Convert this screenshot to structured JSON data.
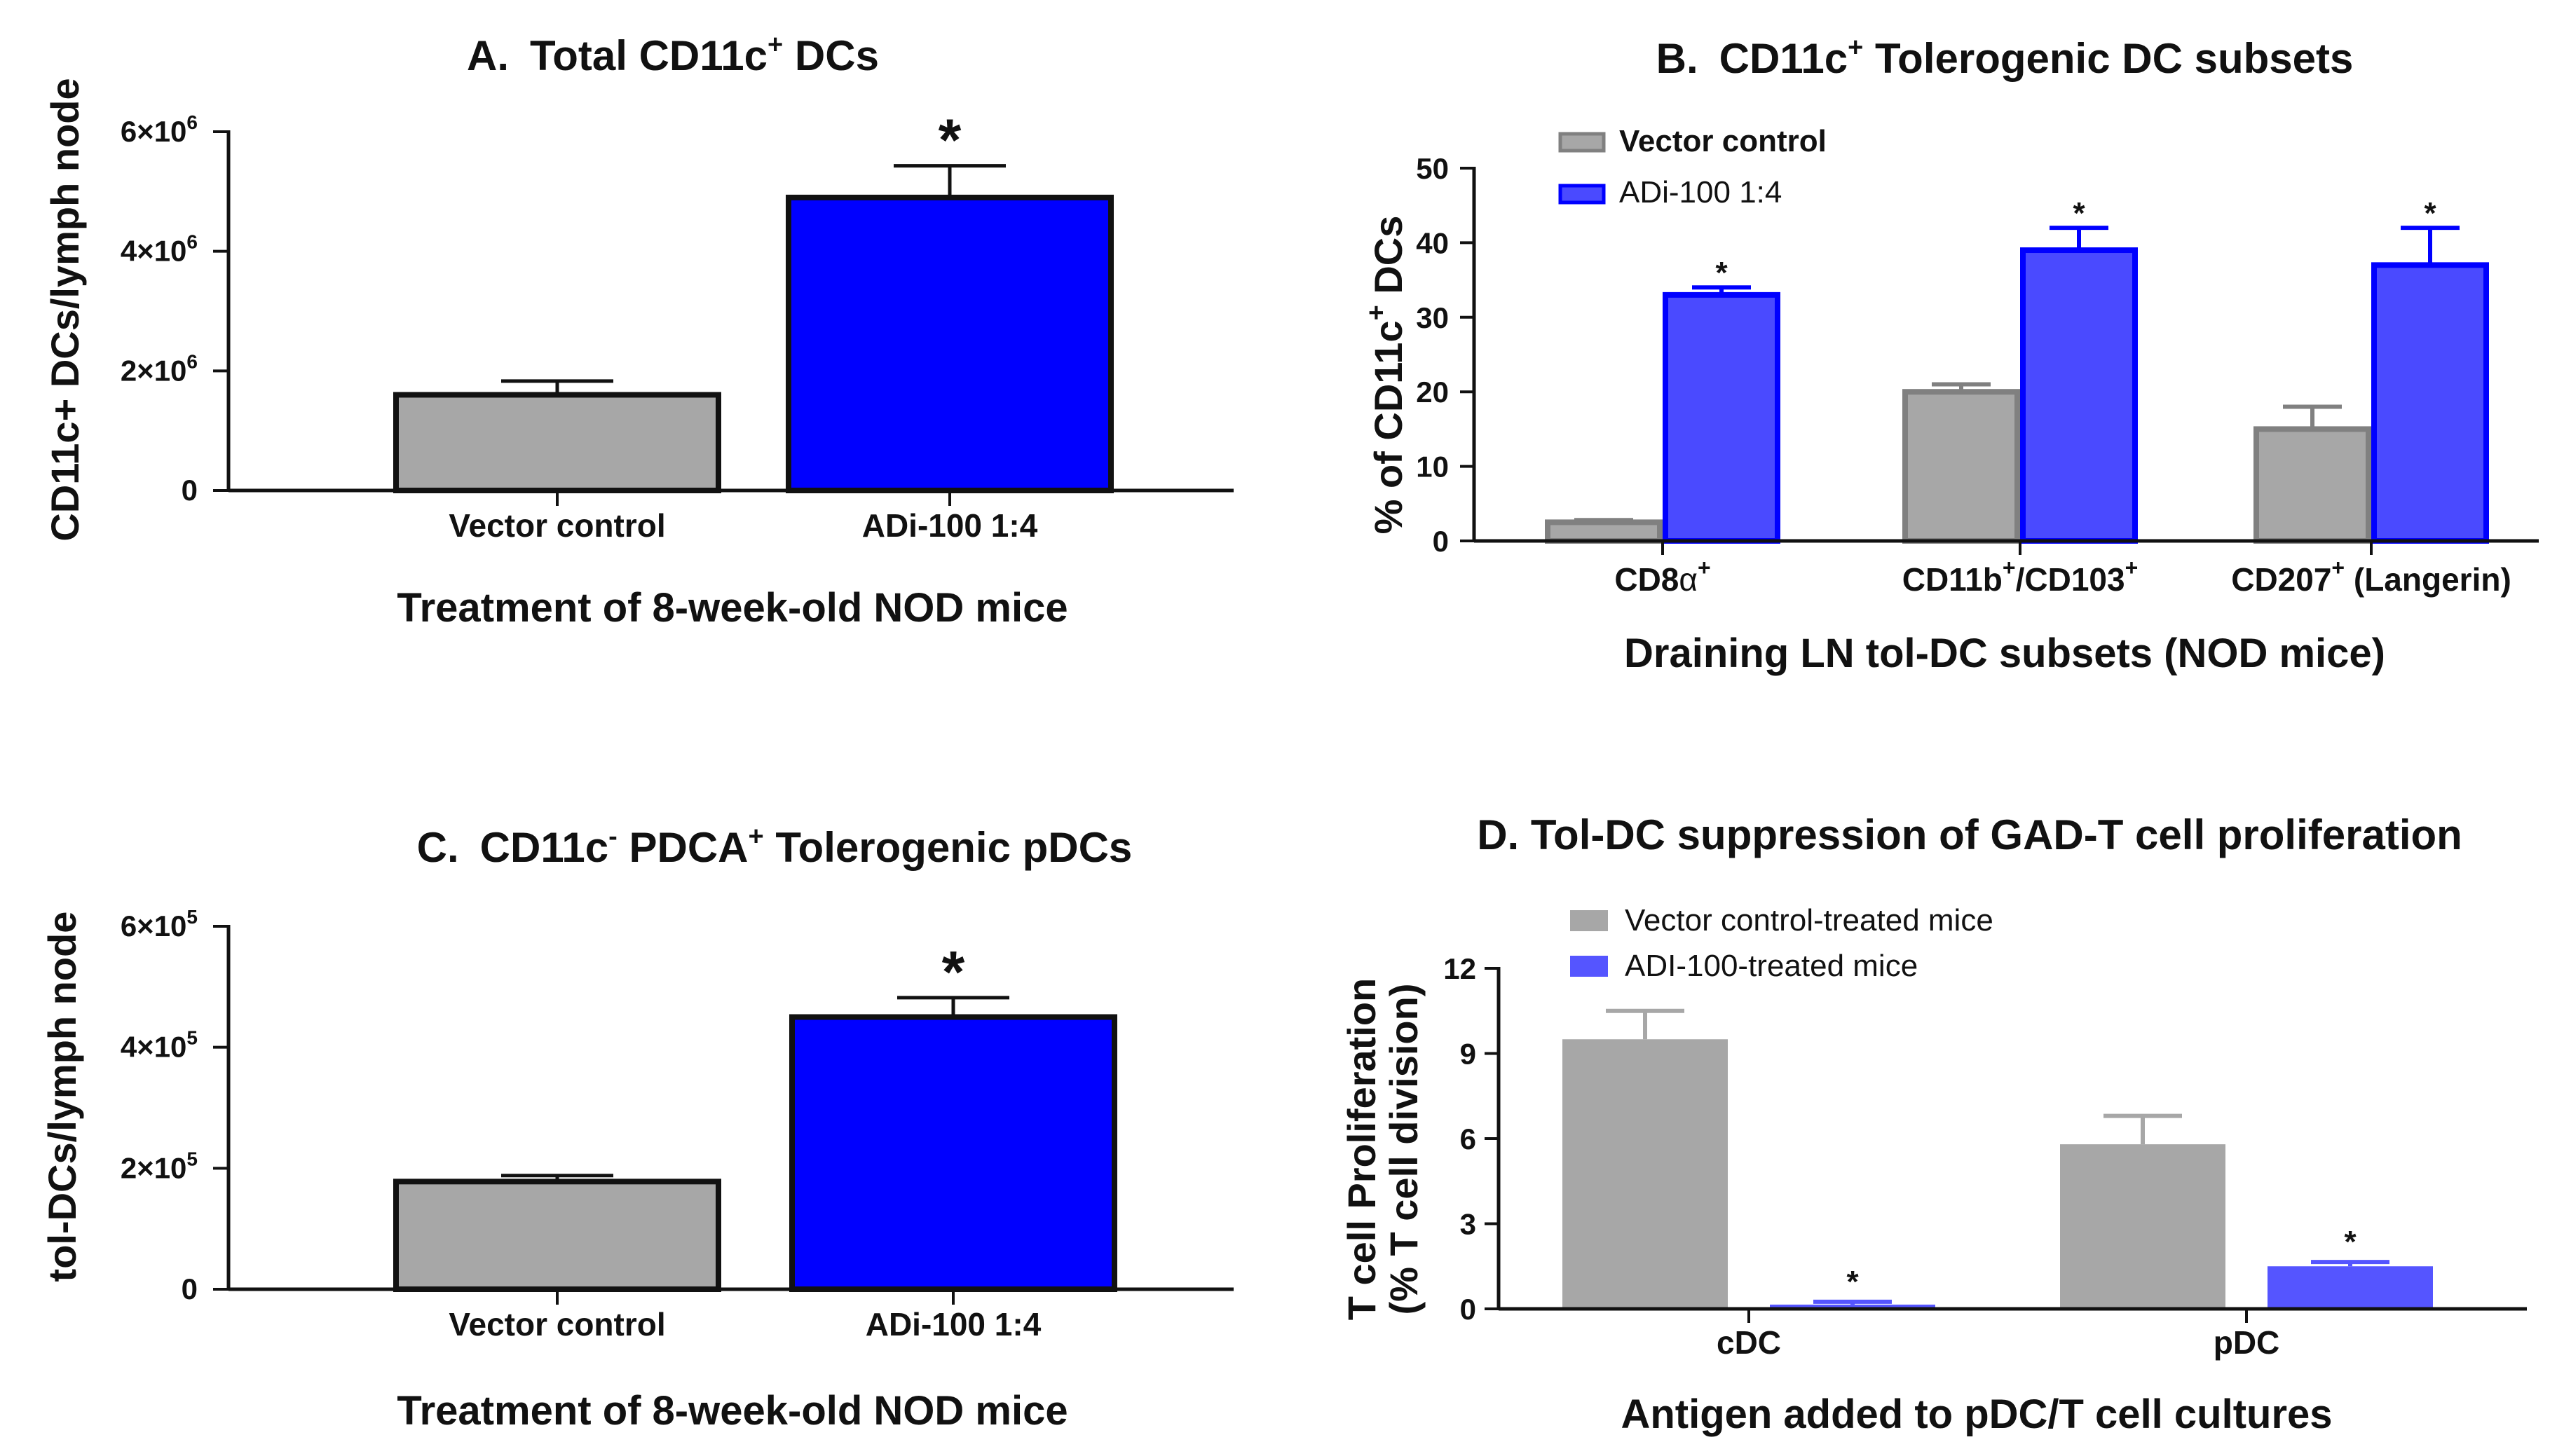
{
  "chart_data": [
    {
      "id": "A",
      "type": "bar",
      "title_prefix": "A.",
      "title_main": "Total CD11c",
      "title_sup": "+",
      "title_suffix": " DCs",
      "xlabel": "Treatment of 8-week-old NOD mice",
      "ylabel": "CD11c+ DCs/lymph node",
      "ylim": [
        0,
        6000000
      ],
      "yticks": [
        0,
        2000000,
        4000000,
        6000000
      ],
      "ytick_base": [
        "0",
        "2×10",
        "4×10",
        "6×10"
      ],
      "ytick_exp": [
        "",
        "6",
        "6",
        "6"
      ],
      "categories": [
        "Vector control",
        "ADi-100 1:4"
      ],
      "values": [
        1600000,
        4900000
      ],
      "errors": [
        230000,
        530000
      ],
      "colors": [
        "#a7a7a7",
        "#0000ff"
      ],
      "significance": [
        "",
        "*"
      ]
    },
    {
      "id": "B",
      "type": "bar",
      "title_prefix": "B.",
      "title_main": "CD11c",
      "title_sup": "+",
      "title_suffix": " Tolerogenic DC subsets",
      "xlabel": "Draining LN tol-DC subsets (NOD mice)",
      "ylabel_main": "% of CD11c",
      "ylabel_sup": "+",
      "ylabel_suffix": " DCs",
      "ylim": [
        0,
        50
      ],
      "yticks": [
        0,
        10,
        20,
        30,
        40,
        50
      ],
      "ytick_labels": [
        "0",
        "10",
        "20",
        "30",
        "40",
        "50"
      ],
      "categories": [
        {
          "main": "CD8",
          "greek": "α",
          "sup": "+",
          "rest": ""
        },
        {
          "main": "CD11b",
          "sup": "+",
          "mid": "/CD103",
          "sup2": "+"
        },
        {
          "main": "CD207",
          "sup": "+",
          "rest": " (Langerin)"
        }
      ],
      "series": [
        {
          "name": "Vector control",
          "color": "#808080",
          "fill": "#a7a7a7",
          "values": [
            2.5,
            20,
            15
          ],
          "errors": [
            0.3,
            1,
            3
          ],
          "significance": [
            "",
            "",
            ""
          ]
        },
        {
          "name": "ADi-100 1:4",
          "color": "#0000ff",
          "fill": "#4a4aff",
          "values": [
            33,
            39,
            37
          ],
          "errors": [
            1,
            3,
            5
          ],
          "significance": [
            "*",
            "*",
            "*"
          ]
        }
      ]
    },
    {
      "id": "C",
      "type": "bar",
      "title_prefix": "C.",
      "title_main": "CD11c",
      "title_sup": "-",
      "title_mid": " PDCA",
      "title_sup2": "+",
      "title_suffix": " Tolerogenic pDCs",
      "xlabel": "Treatment of 8-week-old NOD mice",
      "ylabel": "tol-DCs/lymph node",
      "ylim": [
        0,
        600000
      ],
      "yticks": [
        0,
        200000,
        400000,
        600000
      ],
      "ytick_base": [
        "0",
        "2×10",
        "4×10",
        "6×10"
      ],
      "ytick_exp": [
        "",
        "5",
        "5",
        "5"
      ],
      "categories": [
        "Vector control",
        "ADi-100 1:4"
      ],
      "values": [
        178000,
        450000
      ],
      "errors": [
        10000,
        32000
      ],
      "colors": [
        "#a7a7a7",
        "#0000ff"
      ],
      "significance": [
        "",
        "*"
      ]
    },
    {
      "id": "D",
      "type": "bar",
      "title": "D.   Tol-DC suppression of GAD-T cell proliferation",
      "xlabel": "Antigen added to pDC/T cell cultures",
      "ylabel_line1": "T cell Proliferation",
      "ylabel_line2": "(% T cell division)",
      "ylim": [
        0,
        12
      ],
      "yticks": [
        0,
        3,
        6,
        9,
        12
      ],
      "ytick_labels": [
        "0",
        "3",
        "6",
        "9",
        "12"
      ],
      "categories": [
        "cDC",
        "pDC"
      ],
      "series": [
        {
          "name": "Vector control-treated mice",
          "color": "#a7a7a7",
          "values": [
            9.5,
            5.8
          ],
          "errors": [
            1.0,
            1.0
          ],
          "significance": [
            "",
            ""
          ]
        },
        {
          "name": "ADI-100-treated mice",
          "color": "#5555ff",
          "values": [
            0.15,
            1.5
          ],
          "errors": [
            0.1,
            0.15
          ],
          "significance": [
            "*",
            "*"
          ]
        }
      ]
    }
  ]
}
